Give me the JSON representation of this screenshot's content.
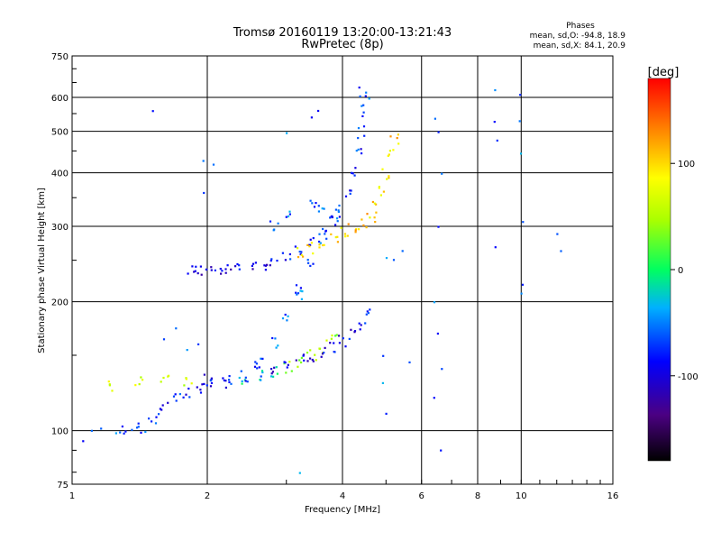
{
  "chart_data": {
    "type": "scatter",
    "title": "Tromsø 20160119 13:20:00-13:21:43",
    "subtitle": "RwPretec (8p)",
    "xlabel": "Frequency [MHz]",
    "ylabel": "Stationary phase Virtual Height [km]",
    "x_scale": "log",
    "y_scale": "log",
    "xlim": [
      1,
      16
    ],
    "ylim": [
      75,
      750
    ],
    "x_ticks": [
      1,
      2,
      4,
      6,
      8,
      10,
      16
    ],
    "x_tick_labels": [
      "1",
      "2",
      "4",
      "6",
      "8",
      "10",
      "16"
    ],
    "y_ticks": [
      75,
      100,
      200,
      300,
      400,
      500,
      600,
      750
    ],
    "y_tick_labels": [
      "75",
      "100",
      "200",
      "300",
      "400",
      "500",
      "600",
      "750"
    ],
    "grid": true,
    "stats": {
      "heading": "Phases",
      "line_o": "mean, sd,O: -94.8, 18.9",
      "line_x": "mean, sd,X:  84.1, 20.9"
    },
    "colorbar": {
      "label": "[deg]",
      "range": [
        -180,
        180
      ],
      "ticks": [
        100,
        0,
        -100
      ],
      "tick_labels": [
        "100",
        "0",
        "-100"
      ]
    },
    "series": [
      {
        "points": [
          [
            1.83,
            240
          ],
          [
            1.9,
            238
          ],
          [
            2.0,
            237
          ],
          [
            2.1,
            237
          ],
          [
            2.2,
            238
          ],
          [
            2.35,
            240
          ],
          [
            2.5,
            243
          ],
          [
            2.65,
            247
          ],
          [
            2.8,
            252
          ],
          [
            3.0,
            258
          ],
          [
            3.2,
            266
          ],
          [
            3.4,
            276
          ],
          [
            3.6,
            290
          ],
          [
            3.8,
            308
          ],
          [
            3.95,
            328
          ],
          [
            4.1,
            360
          ],
          [
            4.2,
            400
          ],
          [
            4.3,
            450
          ],
          [
            4.35,
            500
          ],
          [
            4.38,
            560
          ],
          [
            4.4,
            620
          ]
        ]
      },
      {
        "points": [
          [
            3.2,
            262
          ],
          [
            3.4,
            268
          ],
          [
            3.6,
            275
          ],
          [
            3.8,
            283
          ],
          [
            4.0,
            290
          ],
          [
            4.2,
            297
          ],
          [
            4.4,
            303
          ],
          [
            4.6,
            315
          ],
          [
            4.75,
            333
          ],
          [
            4.9,
            365
          ],
          [
            5.0,
            400
          ],
          [
            5.1,
            440
          ],
          [
            5.2,
            480
          ]
        ]
      },
      {
        "points": [
          [
            1.3,
            100
          ],
          [
            1.4,
            102
          ],
          [
            1.5,
            108
          ],
          [
            1.6,
            115
          ],
          [
            1.7,
            120
          ],
          [
            1.8,
            124
          ],
          [
            1.9,
            126
          ],
          [
            2.0,
            128
          ],
          [
            2.2,
            130
          ],
          [
            2.4,
            132
          ],
          [
            2.6,
            135
          ],
          [
            2.8,
            138
          ],
          [
            3.0,
            141
          ],
          [
            3.2,
            146
          ],
          [
            3.4,
            151
          ],
          [
            3.6,
            158
          ],
          [
            3.8,
            170
          ]
        ]
      },
      {
        "points": [
          [
            1.2,
            128
          ],
          [
            1.4,
            130
          ],
          [
            1.6,
            131
          ],
          [
            1.8,
            132
          ],
          [
            2.0,
            132
          ],
          [
            2.2,
            133
          ],
          [
            2.4,
            134
          ],
          [
            2.6,
            137
          ],
          [
            2.8,
            140
          ],
          [
            3.0,
            143
          ],
          [
            3.2,
            147
          ],
          [
            3.4,
            150
          ],
          [
            3.6,
            153
          ],
          [
            3.8,
            156
          ],
          [
            4.0,
            162
          ],
          [
            4.2,
            168
          ],
          [
            4.4,
            178
          ],
          [
            4.6,
            190
          ]
        ]
      },
      {
        "points": [
          [
            2.6,
            145
          ],
          [
            2.8,
            162
          ],
          [
            3.0,
            185
          ],
          [
            3.2,
            215
          ],
          [
            3.4,
            248
          ],
          [
            3.6,
            285
          ],
          [
            3.8,
            320
          ],
          [
            3.2,
            210
          ],
          [
            3.0,
            320
          ],
          [
            3.4,
            345
          ],
          [
            2.8,
            300
          ],
          [
            3.6,
            330
          ]
        ]
      },
      {
        "points": [
          [
            1.05,
            95
          ],
          [
            1.1,
            100
          ],
          [
            1.15,
            102
          ],
          [
            1.25,
            99
          ],
          [
            1.35,
            101
          ],
          [
            1.45,
            100
          ],
          [
            1.55,
            110
          ],
          [
            1.6,
            165
          ],
          [
            1.7,
            175
          ],
          [
            1.8,
            155
          ],
          [
            1.9,
            160
          ],
          [
            1.95,
            430
          ],
          [
            2.05,
            420
          ],
          [
            1.95,
            360
          ],
          [
            3.0,
            497
          ],
          [
            3.4,
            540
          ],
          [
            3.5,
            560
          ],
          [
            4.55,
            600
          ],
          [
            1.5,
            560
          ],
          [
            6.4,
            540
          ],
          [
            6.5,
            500
          ],
          [
            6.6,
            400
          ],
          [
            6.5,
            300
          ],
          [
            6.4,
            200
          ],
          [
            6.5,
            170
          ],
          [
            6.6,
            140
          ],
          [
            6.4,
            120
          ],
          [
            6.6,
            90
          ],
          [
            8.7,
            630
          ],
          [
            8.7,
            530
          ],
          [
            8.8,
            480
          ],
          [
            8.7,
            270
          ],
          [
            9.9,
            610
          ],
          [
            9.9,
            530
          ],
          [
            9.9,
            445
          ],
          [
            10.0,
            310
          ],
          [
            12.0,
            290
          ],
          [
            12.2,
            265
          ],
          [
            10.0,
            220
          ],
          [
            10.0,
            210
          ],
          [
            5.0,
            255
          ],
          [
            5.2,
            252
          ],
          [
            5.4,
            265
          ],
          [
            5.0,
            110
          ],
          [
            4.9,
            130
          ],
          [
            4.9,
            150
          ],
          [
            3.2,
            80
          ],
          [
            5.6,
            145
          ]
        ]
      }
    ]
  }
}
